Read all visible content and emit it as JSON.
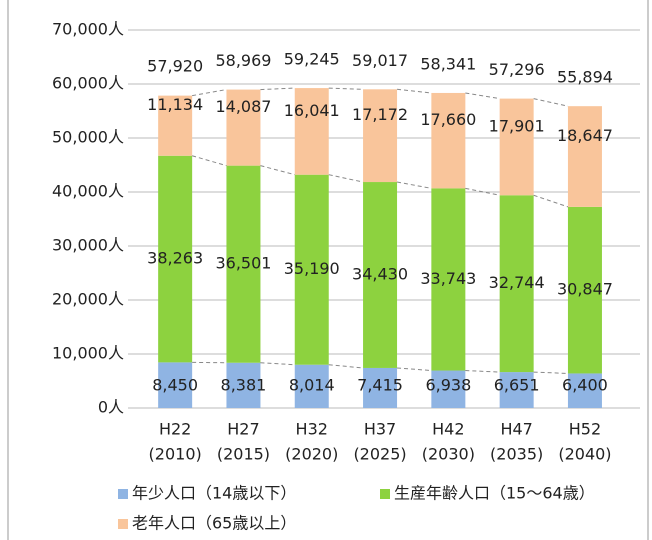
{
  "chart_data": {
    "type": "stacked-bar",
    "categories": [
      "H22",
      "H27",
      "H32",
      "H37",
      "H42",
      "H47",
      "H52"
    ],
    "category_years": [
      "(2010)",
      "(2015)",
      "(2020)",
      "(2025)",
      "(2030)",
      "(2035)",
      "(2040)"
    ],
    "series": [
      {
        "name": "年少人口（14歳以下）",
        "color": "#8fb4e3",
        "values": [
          8450,
          8381,
          8014,
          7415,
          6938,
          6651,
          6400
        ],
        "value_labels": [
          "8,450",
          "8,381",
          "8,014",
          "7,415",
          "6,938",
          "6,651",
          "6,400"
        ]
      },
      {
        "name": "生産年齢人口（15～64歳）",
        "color": "#8dd23f",
        "values": [
          38263,
          36501,
          35190,
          34430,
          33743,
          32744,
          30847
        ],
        "value_labels": [
          "38,263",
          "36,501",
          "35,190",
          "34,430",
          "33,743",
          "32,744",
          "30,847"
        ]
      },
      {
        "name": "老年人口（65歳以上）",
        "color": "#f9c59b",
        "values": [
          11134,
          14087,
          16041,
          17172,
          17660,
          17901,
          18647
        ],
        "value_labels": [
          "11,134",
          "14,087",
          "16,041",
          "17,172",
          "17,660",
          "17,901",
          "18,647"
        ]
      }
    ],
    "totals": [
      57920,
      58969,
      59245,
      59017,
      58341,
      57296,
      55894
    ],
    "total_labels": [
      "57,920",
      "58,969",
      "59,245",
      "59,017",
      "58,341",
      "57,296",
      "55,894"
    ],
    "ylim": [
      0,
      70000
    ],
    "yticks": [
      {
        "value": 0,
        "label": "0人"
      },
      {
        "value": 10000,
        "label": "10,000人"
      },
      {
        "value": 20000,
        "label": "20,000人"
      },
      {
        "value": 30000,
        "label": "30,000人"
      },
      {
        "value": 40000,
        "label": "40,000人"
      },
      {
        "value": 50000,
        "label": "50,000人"
      },
      {
        "value": 60000,
        "label": "60,000人"
      },
      {
        "value": 70000,
        "label": "70,000人"
      }
    ],
    "grid": true
  }
}
